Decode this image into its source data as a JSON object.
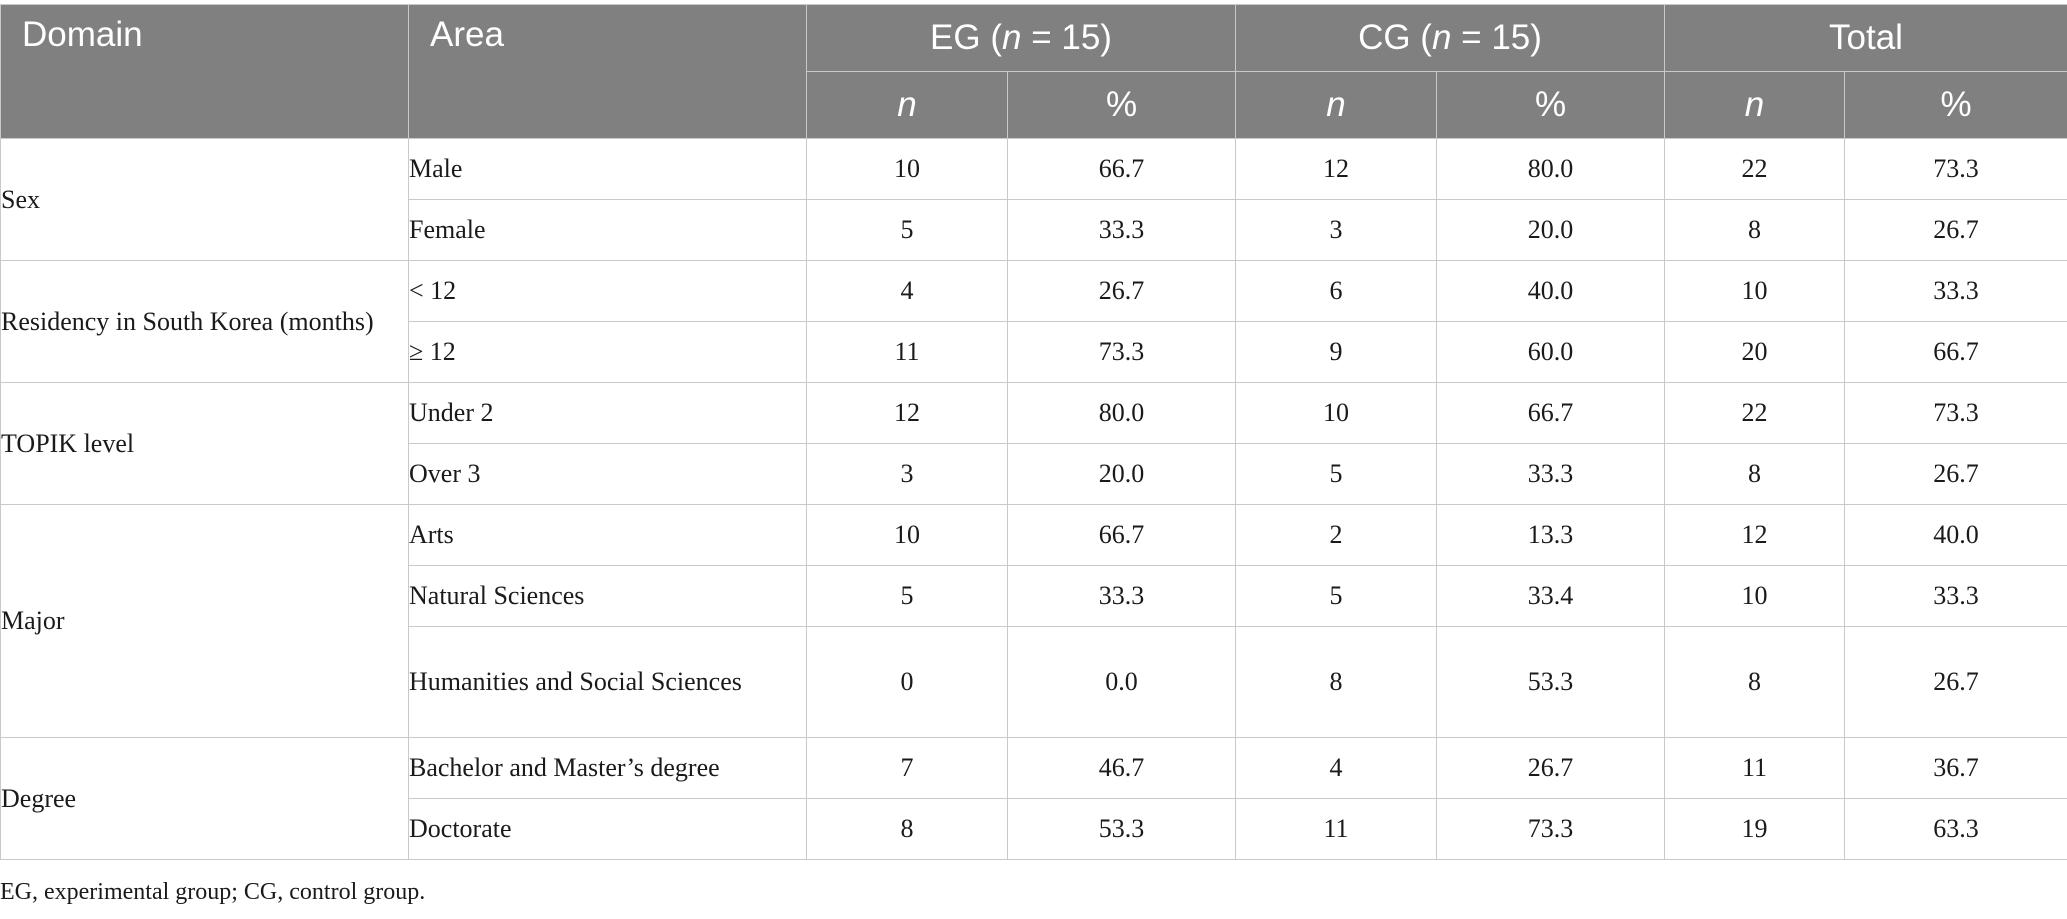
{
  "header": {
    "domain": "Domain",
    "area": "Area",
    "groups": [
      {
        "prefix": "EG (",
        "n_italic": "n",
        "suffix": " = 15)"
      },
      {
        "prefix": "CG (",
        "n_italic": "n",
        "suffix": " = 15)"
      },
      {
        "label": "Total"
      }
    ],
    "sub": {
      "n": "n",
      "pct": "%"
    }
  },
  "rows": [
    {
      "domain": "Sex",
      "area": "Male",
      "eg_n": "10",
      "eg_pct": "66.7",
      "cg_n": "12",
      "cg_pct": "80.0",
      "total_n": "22",
      "total_pct": "73.3"
    },
    {
      "area": "Female",
      "eg_n": "5",
      "eg_pct": "33.3",
      "cg_n": "3",
      "cg_pct": "20.0",
      "total_n": "8",
      "total_pct": "26.7"
    },
    {
      "domain": "Residency in South Korea (months)",
      "area": "< 12",
      "eg_n": "4",
      "eg_pct": "26.7",
      "cg_n": "6",
      "cg_pct": "40.0",
      "total_n": "10",
      "total_pct": "33.3"
    },
    {
      "area": "≥ 12",
      "eg_n": "11",
      "eg_pct": "73.3",
      "cg_n": "9",
      "cg_pct": "60.0",
      "total_n": "20",
      "total_pct": "66.7"
    },
    {
      "domain": "TOPIK level",
      "area": "Under 2",
      "eg_n": "12",
      "eg_pct": "80.0",
      "cg_n": "10",
      "cg_pct": "66.7",
      "total_n": "22",
      "total_pct": "73.3"
    },
    {
      "area": "Over 3",
      "eg_n": "3",
      "eg_pct": "20.0",
      "cg_n": "5",
      "cg_pct": "33.3",
      "total_n": "8",
      "total_pct": "26.7"
    },
    {
      "domain": "Major",
      "area": "Arts",
      "eg_n": "10",
      "eg_pct": "66.7",
      "cg_n": "2",
      "cg_pct": "13.3",
      "total_n": "12",
      "total_pct": "40.0"
    },
    {
      "area": "Natural Sciences",
      "eg_n": "5",
      "eg_pct": "33.3",
      "cg_n": "5",
      "cg_pct": "33.4",
      "total_n": "10",
      "total_pct": "33.3"
    },
    {
      "area": "Humanities and Social Sciences",
      "eg_n": "0",
      "eg_pct": "0.0",
      "cg_n": "8",
      "cg_pct": "53.3",
      "total_n": "8",
      "total_pct": "26.7"
    },
    {
      "domain": "Degree",
      "area": "Bachelor and Master’s degree",
      "eg_n": "7",
      "eg_pct": "46.7",
      "cg_n": "4",
      "cg_pct": "26.7",
      "total_n": "11",
      "total_pct": "36.7"
    },
    {
      "area": "Doctorate",
      "eg_n": "8",
      "eg_pct": "53.3",
      "cg_n": "11",
      "cg_pct": "73.3",
      "total_n": "19",
      "total_pct": "63.3"
    }
  ],
  "footnote": "EG, experimental group; CG, control group."
}
